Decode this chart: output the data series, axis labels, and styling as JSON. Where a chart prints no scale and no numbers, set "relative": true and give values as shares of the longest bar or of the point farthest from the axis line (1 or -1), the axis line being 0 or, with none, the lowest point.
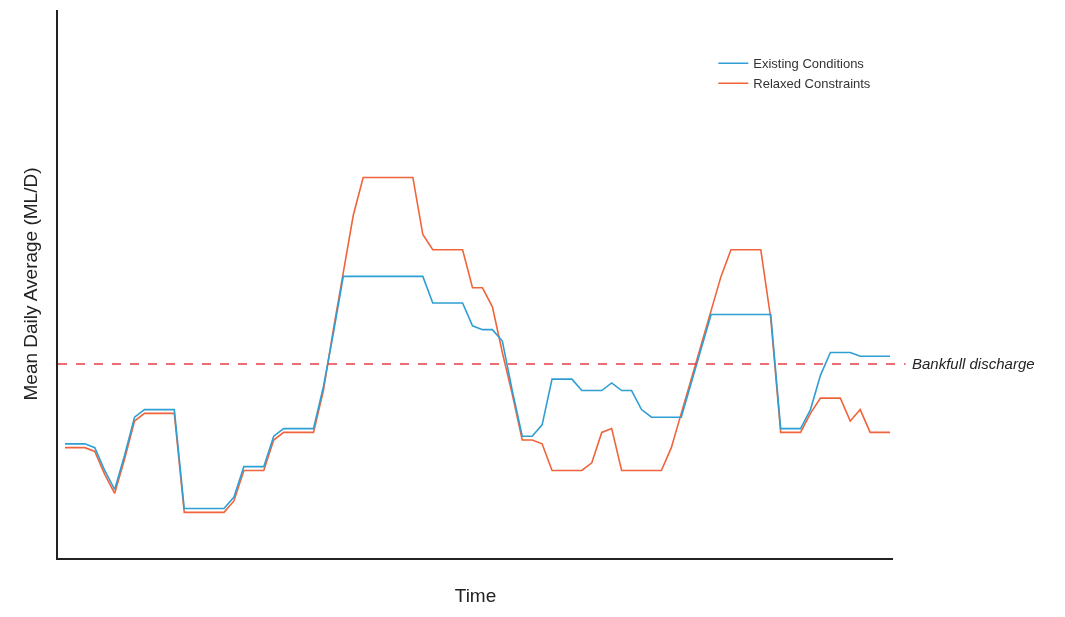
{
  "chart_data": {
    "type": "line",
    "relative": true,
    "xlabel": "Time",
    "ylabel": "Mean Daily Average (ML/D)",
    "legend": "top right",
    "line_style": "solid",
    "categories": [
      null,
      null,
      null,
      null,
      null,
      null,
      null,
      null,
      null,
      null,
      null,
      null,
      null,
      null,
      null,
      null,
      null,
      null,
      null,
      null,
      null,
      null,
      null,
      null,
      null,
      null,
      null,
      null,
      null,
      null,
      null,
      null,
      null,
      null,
      null,
      null,
      null,
      null,
      null,
      null,
      null,
      null,
      null,
      null,
      null,
      null,
      null,
      null,
      null,
      null,
      null,
      null,
      null,
      null,
      null,
      null,
      null,
      null,
      null,
      null,
      null,
      null,
      null,
      null,
      null,
      null,
      null,
      null,
      null,
      null,
      null,
      null,
      null,
      null,
      null,
      null,
      null,
      null,
      null,
      null,
      null,
      null,
      null,
      null
    ],
    "series": [
      {
        "name": "Existing Conditions",
        "color": "#2f9fd3",
        "values": [
          0.3,
          0.3,
          0.3,
          0.29,
          0.23,
          0.18,
          0.27,
          0.37,
          0.39,
          0.39,
          0.39,
          0.39,
          0.13,
          0.13,
          0.13,
          0.13,
          0.13,
          0.16,
          0.24,
          0.24,
          0.24,
          0.32,
          0.34,
          0.34,
          0.34,
          0.34,
          0.45,
          0.59,
          0.74,
          0.74,
          0.74,
          0.74,
          0.74,
          0.74,
          0.74,
          0.74,
          0.74,
          0.67,
          0.67,
          0.67,
          0.67,
          0.61,
          0.6,
          0.6,
          0.57,
          0.44,
          0.32,
          0.32,
          0.35,
          0.47,
          0.47,
          0.47,
          0.44,
          0.44,
          0.44,
          0.46,
          0.44,
          0.44,
          0.39,
          0.37,
          0.37,
          0.37,
          0.37,
          0.46,
          0.55,
          0.64,
          0.64,
          0.64,
          0.64,
          0.64,
          0.64,
          0.64,
          0.34,
          0.34,
          0.34,
          0.39,
          0.48,
          0.54,
          0.54,
          0.54,
          0.53,
          0.53,
          0.53,
          0.53
        ]
      },
      {
        "name": "Relaxed Constraints",
        "color": "#f0643c",
        "values": [
          0.29,
          0.29,
          0.29,
          0.28,
          0.22,
          0.17,
          0.26,
          0.36,
          0.38,
          0.38,
          0.38,
          0.38,
          0.12,
          0.12,
          0.12,
          0.12,
          0.12,
          0.15,
          0.23,
          0.23,
          0.23,
          0.31,
          0.33,
          0.33,
          0.33,
          0.33,
          0.44,
          0.6,
          0.75,
          0.9,
          1.0,
          1.0,
          1.0,
          1.0,
          1.0,
          1.0,
          0.85,
          0.81,
          0.81,
          0.81,
          0.81,
          0.71,
          0.71,
          0.66,
          0.54,
          0.43,
          0.31,
          0.31,
          0.3,
          0.23,
          0.23,
          0.23,
          0.23,
          0.25,
          0.33,
          0.34,
          0.23,
          0.23,
          0.23,
          0.23,
          0.23,
          0.29,
          0.38,
          0.47,
          0.56,
          0.65,
          0.74,
          0.81,
          0.81,
          0.81,
          0.81,
          0.63,
          0.33,
          0.33,
          0.33,
          0.38,
          0.42,
          0.42,
          0.42,
          0.36,
          0.39,
          0.33,
          0.33,
          0.33
        ]
      }
    ],
    "ref_lines": [
      {
        "axis": "y",
        "value": 0.51,
        "label": "Bankfull discharge",
        "color": "#e8404a",
        "line_style": "dashed"
      }
    ]
  }
}
